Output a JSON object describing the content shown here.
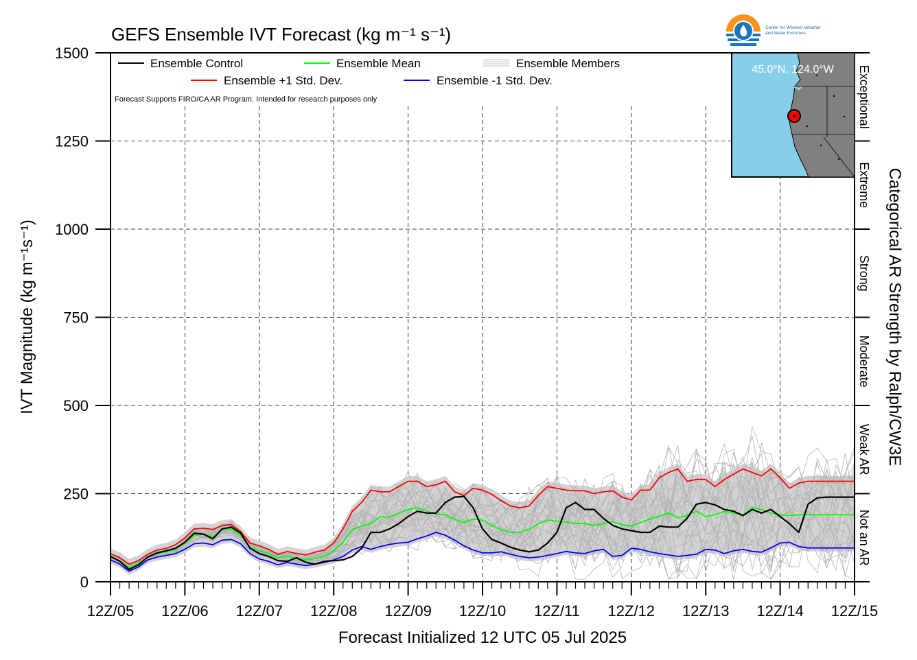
{
  "chart_data": {
    "type": "line",
    "title": "GEFS Ensemble IVT Forecast (kg m⁻¹ s⁻¹)",
    "xlabel": "Forecast Initialized 12 UTC 05 Jul 2025",
    "ylabel": "IVT Magnitude (kg m⁻¹s⁻¹)",
    "right_label": "Categorical AR Strength by Ralph/CW3E",
    "ylim": [
      0,
      1500
    ],
    "yticks": [
      "0",
      "250",
      "500",
      "750",
      "1000",
      "1250",
      "1500"
    ],
    "xlim": [
      0,
      10
    ],
    "xticks": [
      "12Z/05",
      "12Z/06",
      "12Z/07",
      "12Z/08",
      "12Z/09",
      "12Z/10",
      "12Z/11",
      "12Z/12",
      "12Z/13",
      "12Z/14",
      "12Z/15"
    ],
    "categories_right": [
      "Not an AR",
      "Weak AR",
      "Moderate",
      "Strong",
      "Extreme",
      "Exceptional"
    ],
    "grid": true,
    "legend_position": "top-left",
    "legend": {
      "control": "Ensemble Control",
      "mean": "Ensemble Mean",
      "members": "Ensemble Members",
      "plus": "Ensemble +1 Std. Dev.",
      "minus": "Ensemble -1 Std. Dev."
    },
    "note": "Forecast Supports FIRO/CA AR Program. Intended for research purposes only",
    "x": [
      0,
      0.125,
      0.25,
      0.375,
      0.5,
      0.625,
      0.75,
      0.875,
      1,
      1.125,
      1.25,
      1.375,
      1.5,
      1.625,
      1.75,
      1.875,
      2,
      2.125,
      2.25,
      2.375,
      2.5,
      2.625,
      2.75,
      2.875,
      3,
      3.125,
      3.25,
      3.375,
      3.5,
      3.625,
      3.75,
      3.875,
      4,
      4.125,
      4.25,
      4.375,
      4.5,
      4.625,
      4.75,
      4.875,
      5,
      5.125,
      5.25,
      5.375,
      5.5,
      5.625,
      5.75,
      5.875,
      6,
      6.125,
      6.25,
      6.375,
      6.5,
      6.625,
      6.75,
      6.875,
      7,
      7.125,
      7.25,
      7.375,
      7.5,
      7.625,
      7.75,
      7.875,
      8,
      8.125,
      8.25,
      8.375,
      8.5,
      8.625,
      8.75,
      8.875,
      9,
      9.125,
      9.25,
      9.375,
      9.5,
      9.625,
      9.75,
      9.875,
      10
    ],
    "series": [
      {
        "name": "Ensemble +1 Std. Dev.",
        "color": "#ff0000",
        "values": [
          80,
          68,
          50,
          60,
          78,
          90,
          95,
          105,
          125,
          150,
          152,
          148,
          160,
          162,
          142,
          110,
          102,
          92,
          78,
          86,
          80,
          76,
          84,
          90,
          110,
          150,
          200,
          225,
          260,
          255,
          255,
          270,
          285,
          285,
          270,
          275,
          285,
          255,
          245,
          265,
          260,
          248,
          230,
          215,
          210,
          215,
          245,
          270,
          265,
          260,
          258,
          258,
          250,
          255,
          258,
          240,
          232,
          260,
          260,
          295,
          310,
          320,
          285,
          290,
          290,
          270,
          290,
          305,
          320,
          310,
          300,
          320,
          295,
          265,
          280,
          285,
          285,
          285,
          285,
          285,
          285
        ]
      },
      {
        "name": "Ensemble Mean",
        "color": "#00ff00",
        "values": [
          70,
          60,
          40,
          52,
          70,
          80,
          85,
          92,
          110,
          132,
          135,
          128,
          148,
          150,
          132,
          98,
          88,
          80,
          68,
          72,
          66,
          62,
          66,
          72,
          88,
          112,
          148,
          158,
          165,
          185,
          183,
          195,
          205,
          210,
          200,
          192,
          190,
          178,
          168,
          178,
          175,
          160,
          148,
          140,
          140,
          148,
          165,
          175,
          172,
          170,
          165,
          165,
          160,
          165,
          170,
          162,
          158,
          168,
          178,
          185,
          195,
          182,
          188,
          200,
          185,
          190,
          200,
          195,
          188,
          210,
          205,
          195,
          190,
          188,
          190,
          190,
          190,
          190,
          190,
          190,
          190
        ]
      },
      {
        "name": "Ensemble Control",
        "color": "#000000",
        "values": [
          72,
          58,
          35,
          48,
          70,
          82,
          88,
          95,
          112,
          138,
          135,
          122,
          150,
          155,
          138,
          95,
          80,
          72,
          60,
          58,
          68,
          55,
          50,
          58,
          60,
          62,
          72,
          95,
          140,
          140,
          150,
          165,
          185,
          200,
          195,
          195,
          225,
          240,
          242,
          210,
          150,
          120,
          110,
          98,
          90,
          85,
          90,
          110,
          140,
          210,
          225,
          205,
          205,
          180,
          160,
          150,
          145,
          140,
          140,
          158,
          155,
          155,
          180,
          220,
          225,
          218,
          205,
          200,
          188,
          205,
          195,
          205,
          185,
          165,
          140,
          220,
          238,
          240,
          240,
          240,
          240
        ]
      },
      {
        "name": "Ensemble -1 Std. Dev.",
        "color": "#0000ff",
        "values": [
          62,
          50,
          30,
          42,
          62,
          70,
          75,
          80,
          92,
          108,
          110,
          105,
          118,
          120,
          108,
          80,
          65,
          58,
          48,
          55,
          50,
          46,
          50,
          55,
          62,
          72,
          90,
          100,
          92,
          100,
          106,
          110,
          112,
          122,
          130,
          140,
          132,
          118,
          102,
          90,
          82,
          82,
          85,
          78,
          72,
          68,
          70,
          75,
          80,
          86,
          82,
          80,
          88,
          92,
          72,
          75,
          95,
          92,
          85,
          80,
          76,
          72,
          75,
          78,
          92,
          90,
          80,
          88,
          92,
          86,
          84,
          96,
          110,
          112,
          100,
          96,
          96,
          96,
          96,
          96,
          96
        ]
      }
    ],
    "members_band": {
      "name": "Ensemble Members",
      "fill": "#d3d3d3",
      "line_color": "#b3b3b3"
    },
    "inset_map": {
      "label": "45.0°N, 124.0°W",
      "water_color": "#87ceeb",
      "land_color": "#808080",
      "marker_color": "#ff0000"
    },
    "logo": {
      "line1": "Center for Western Weather",
      "line2": "and Water Extremes",
      "colors": [
        "#f7941d",
        "#1c75bc",
        "#2b6e99"
      ]
    }
  }
}
